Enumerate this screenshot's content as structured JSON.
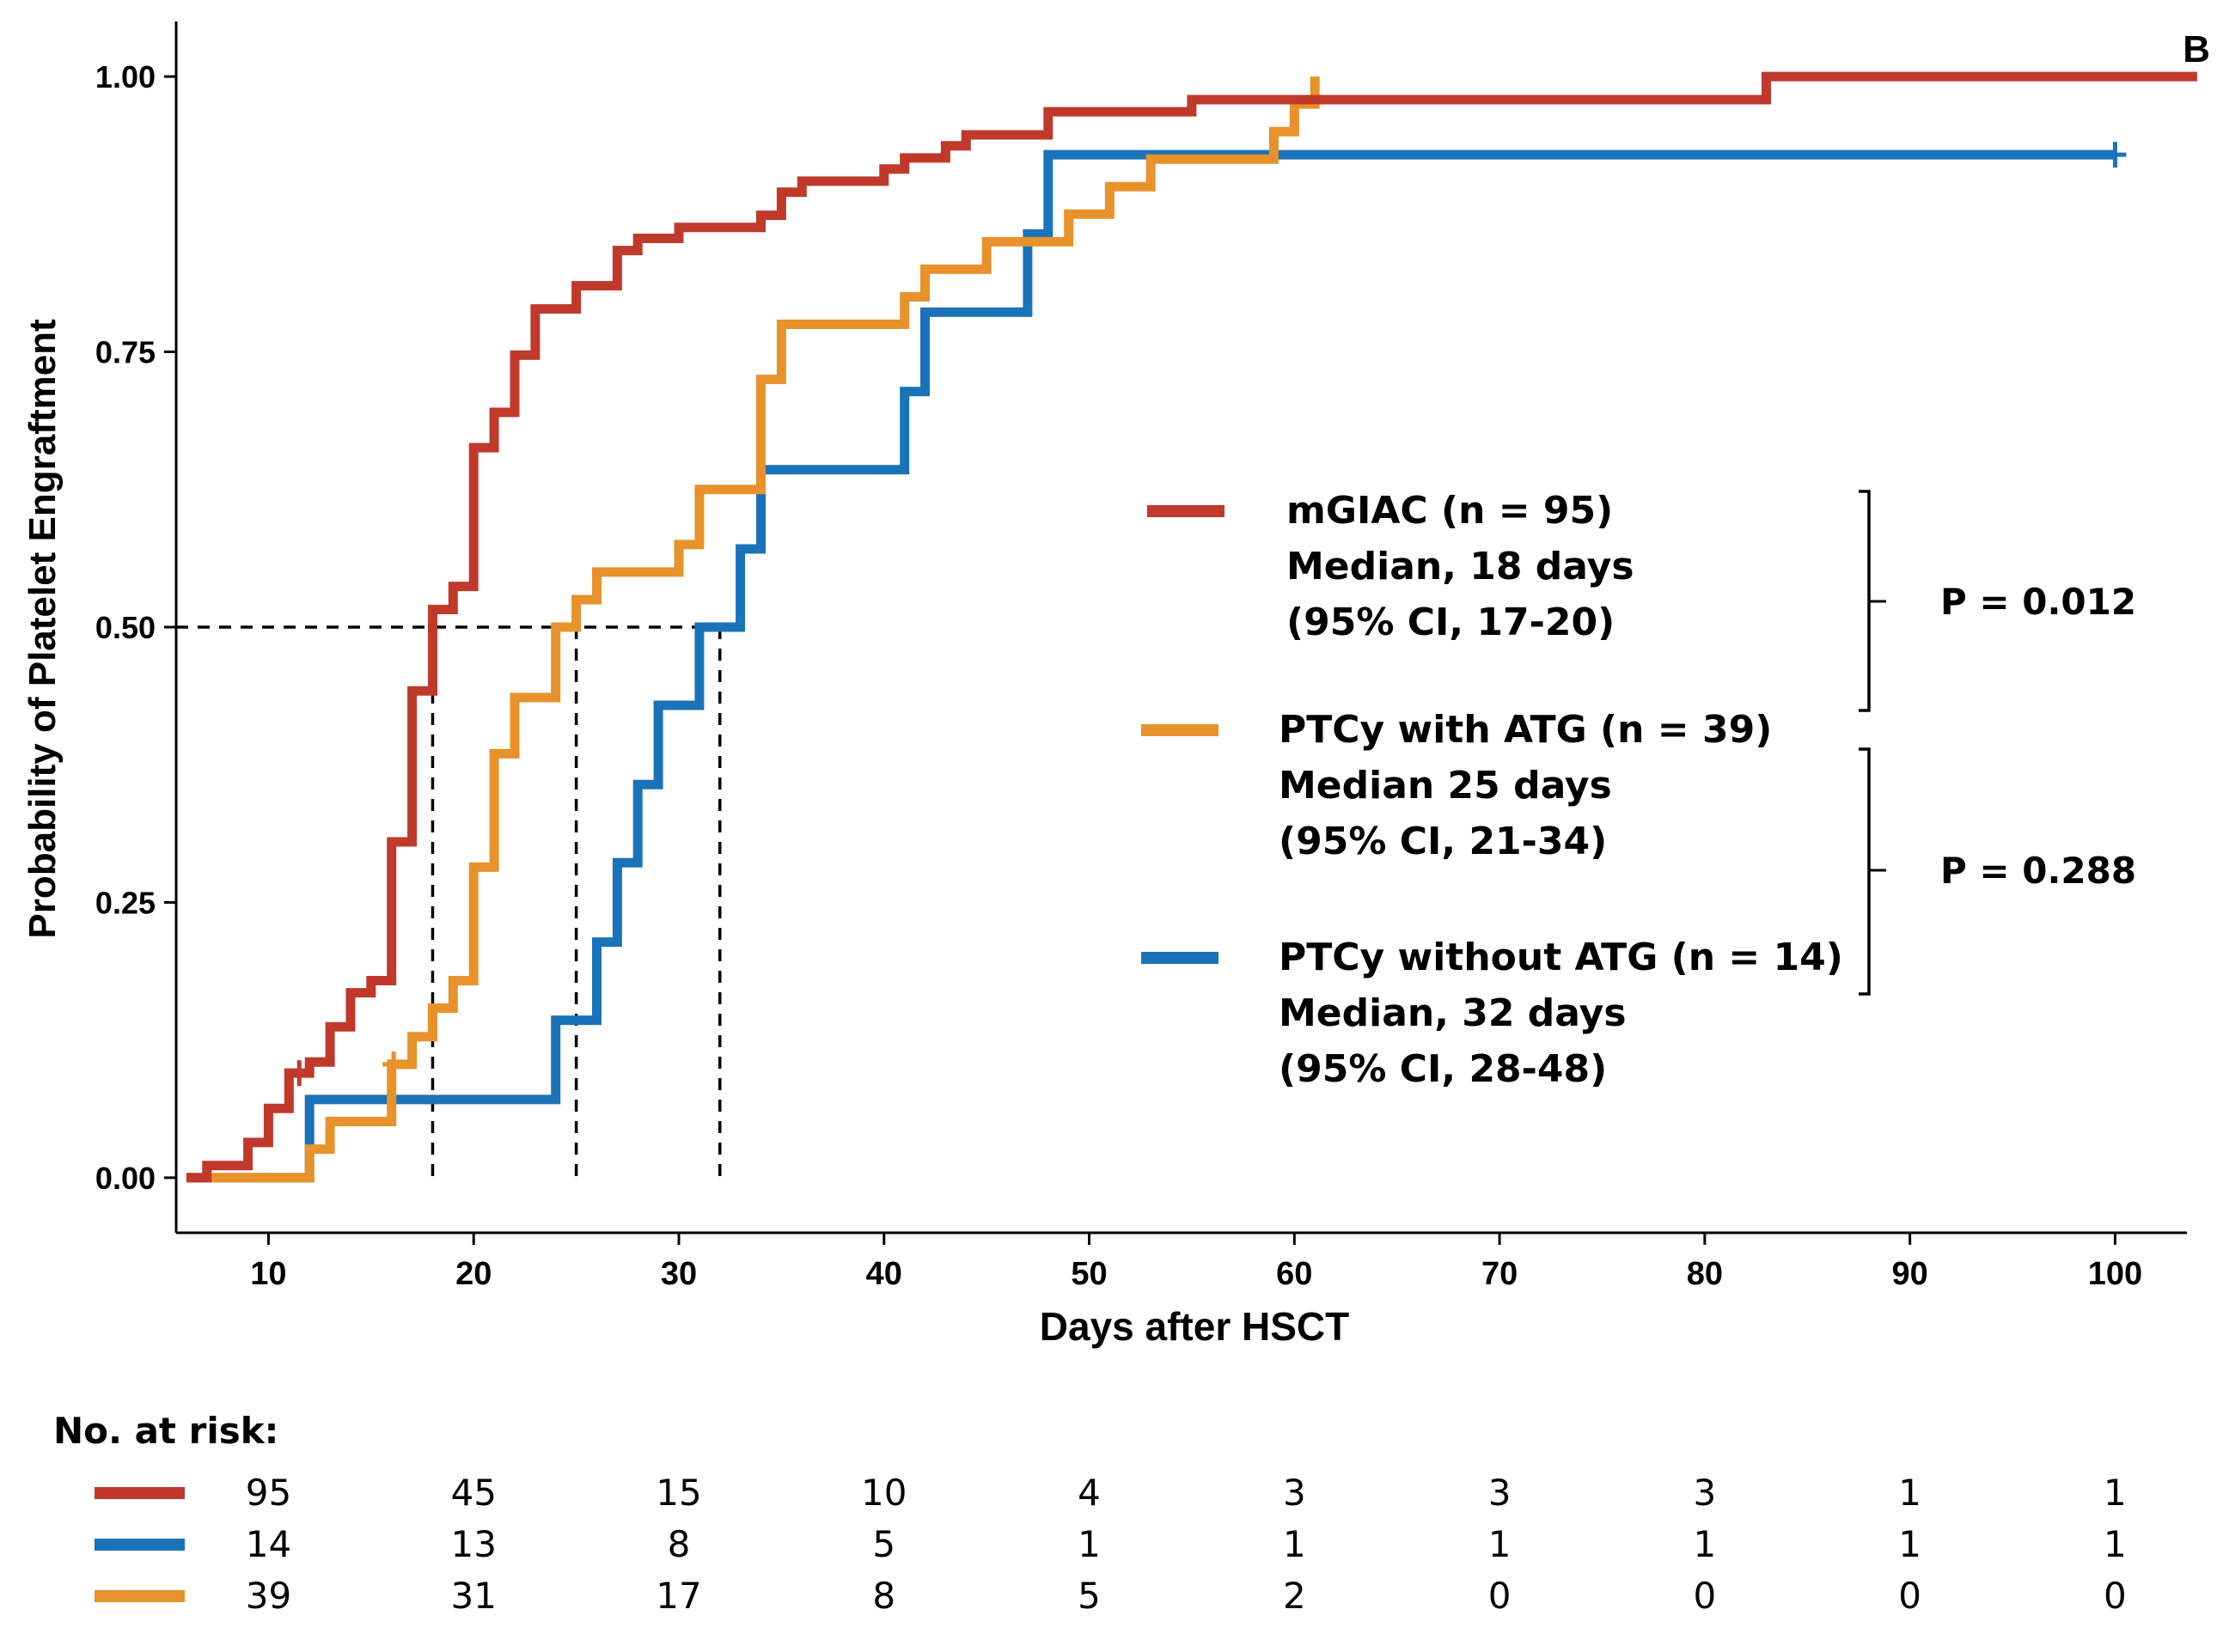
{
  "chart_data": {
    "type": "line",
    "panel_label": "B",
    "xlabel": "Days after HSCT",
    "ylabel": "Probability of Platelet Engraftment",
    "xlim": [
      5.5,
      103.5
    ],
    "ylim": [
      -0.05,
      1.05
    ],
    "x_ticks": [
      10,
      20,
      30,
      40,
      50,
      60,
      70,
      80,
      90,
      100
    ],
    "x_tick_labels": [
      "10",
      "20",
      "30",
      "40",
      "50",
      "60",
      "70",
      "80",
      "90",
      "100"
    ],
    "y_ticks": [
      0,
      0.25,
      0.5,
      0.75,
      1.0
    ],
    "y_tick_labels": [
      "0.00",
      "0.25",
      "0.50",
      "0.75",
      "1.00"
    ],
    "grid": false,
    "step": true,
    "colors": {
      "mgiac": "#c0392b",
      "ptcy_atg": "#e8922b",
      "ptcy_no_atg": "#1a73b8"
    },
    "series": [
      {
        "id": "mgiac",
        "name": "mGIAC (n = 95)",
        "median_text": "Median, 18 days",
        "ci_text": "(95% CI, 17-20)",
        "color": "#c0392b",
        "x": [
          6,
          7,
          9,
          10,
          11,
          12,
          13,
          14,
          15,
          16,
          17,
          18,
          19,
          20,
          21,
          22,
          23,
          25,
          27,
          28,
          30,
          34,
          35,
          36,
          40,
          41,
          43,
          44,
          45,
          48,
          55,
          83,
          104
        ],
        "y": [
          0,
          0.011,
          0.032,
          0.063,
          0.095,
          0.105,
          0.137,
          0.168,
          0.179,
          0.305,
          0.442,
          0.516,
          0.537,
          0.663,
          0.695,
          0.747,
          0.789,
          0.81,
          0.842,
          0.853,
          0.863,
          0.874,
          0.895,
          0.905,
          0.916,
          0.926,
          0.937,
          0.947,
          0.947,
          0.968,
          0.979,
          1.0,
          1.0
        ],
        "censor_x": [
          11.5
        ],
        "censor_y": [
          0.095
        ]
      },
      {
        "id": "ptcy_atg",
        "name": "PTCy with ATG (n = 39)",
        "median_text": "Median 25 days",
        "ci_text": "(95% CI, 21-34)",
        "color": "#e8922b",
        "x": [
          6,
          12,
          13,
          16,
          17,
          18,
          19,
          20,
          21,
          22,
          24,
          25,
          26,
          30,
          31,
          34,
          35,
          41,
          42,
          45,
          49,
          51,
          53,
          59,
          60,
          61
        ],
        "y": [
          0,
          0.026,
          0.051,
          0.103,
          0.128,
          0.154,
          0.179,
          0.282,
          0.385,
          0.436,
          0.5,
          0.525,
          0.55,
          0.575,
          0.625,
          0.725,
          0.775,
          0.8,
          0.825,
          0.85,
          0.875,
          0.9,
          0.925,
          0.95,
          0.975,
          1.0
        ],
        "censor_x": [
          16.1
        ],
        "censor_y": [
          0.103
        ]
      },
      {
        "id": "ptcy_no_atg",
        "name": "PTCy without ATG (n = 14)",
        "median_text": "Median, 32 days",
        "ci_text": "(95% CI, 28-48)",
        "color": "#1a73b8",
        "x": [
          6,
          12,
          24,
          26,
          27,
          28,
          29,
          31,
          33,
          34,
          41,
          42,
          47,
          48,
          100
        ],
        "y": [
          0,
          0.071,
          0.143,
          0.214,
          0.286,
          0.357,
          0.429,
          0.5,
          0.571,
          0.643,
          0.714,
          0.786,
          0.857,
          0.929,
          0.929
        ],
        "censor_x": [
          100
        ],
        "censor_y": [
          0.929
        ]
      }
    ],
    "median_lines": [
      {
        "x": 18,
        "y": 0.5
      },
      {
        "x": 25,
        "y": 0.5
      },
      {
        "x": 32,
        "y": 0.5
      }
    ],
    "p_values": [
      {
        "label": "P = 0.012",
        "between": [
          "mgiac",
          "ptcy_atg"
        ]
      },
      {
        "label": "P = 0.288",
        "between": [
          "ptcy_atg",
          "ptcy_no_atg"
        ]
      }
    ],
    "risk_table": {
      "title": "No. at risk:",
      "columns_x": [
        10,
        20,
        30,
        40,
        50,
        60,
        70,
        80,
        90,
        100
      ],
      "rows": [
        {
          "series": "mgiac",
          "color": "#c0392b",
          "values": [
            "95",
            "45",
            "15",
            "10",
            "4",
            "3",
            "3",
            "3",
            "1",
            "1"
          ]
        },
        {
          "series": "ptcy_no_atg",
          "color": "#1a73b8",
          "values": [
            "14",
            "13",
            "8",
            "5",
            "1",
            "1",
            "1",
            "1",
            "1",
            "1"
          ]
        },
        {
          "series": "ptcy_atg",
          "color": "#e8922b",
          "values": [
            "39",
            "31",
            "17",
            "8",
            "5",
            "2",
            "0",
            "0",
            "0",
            "0"
          ]
        }
      ]
    }
  }
}
